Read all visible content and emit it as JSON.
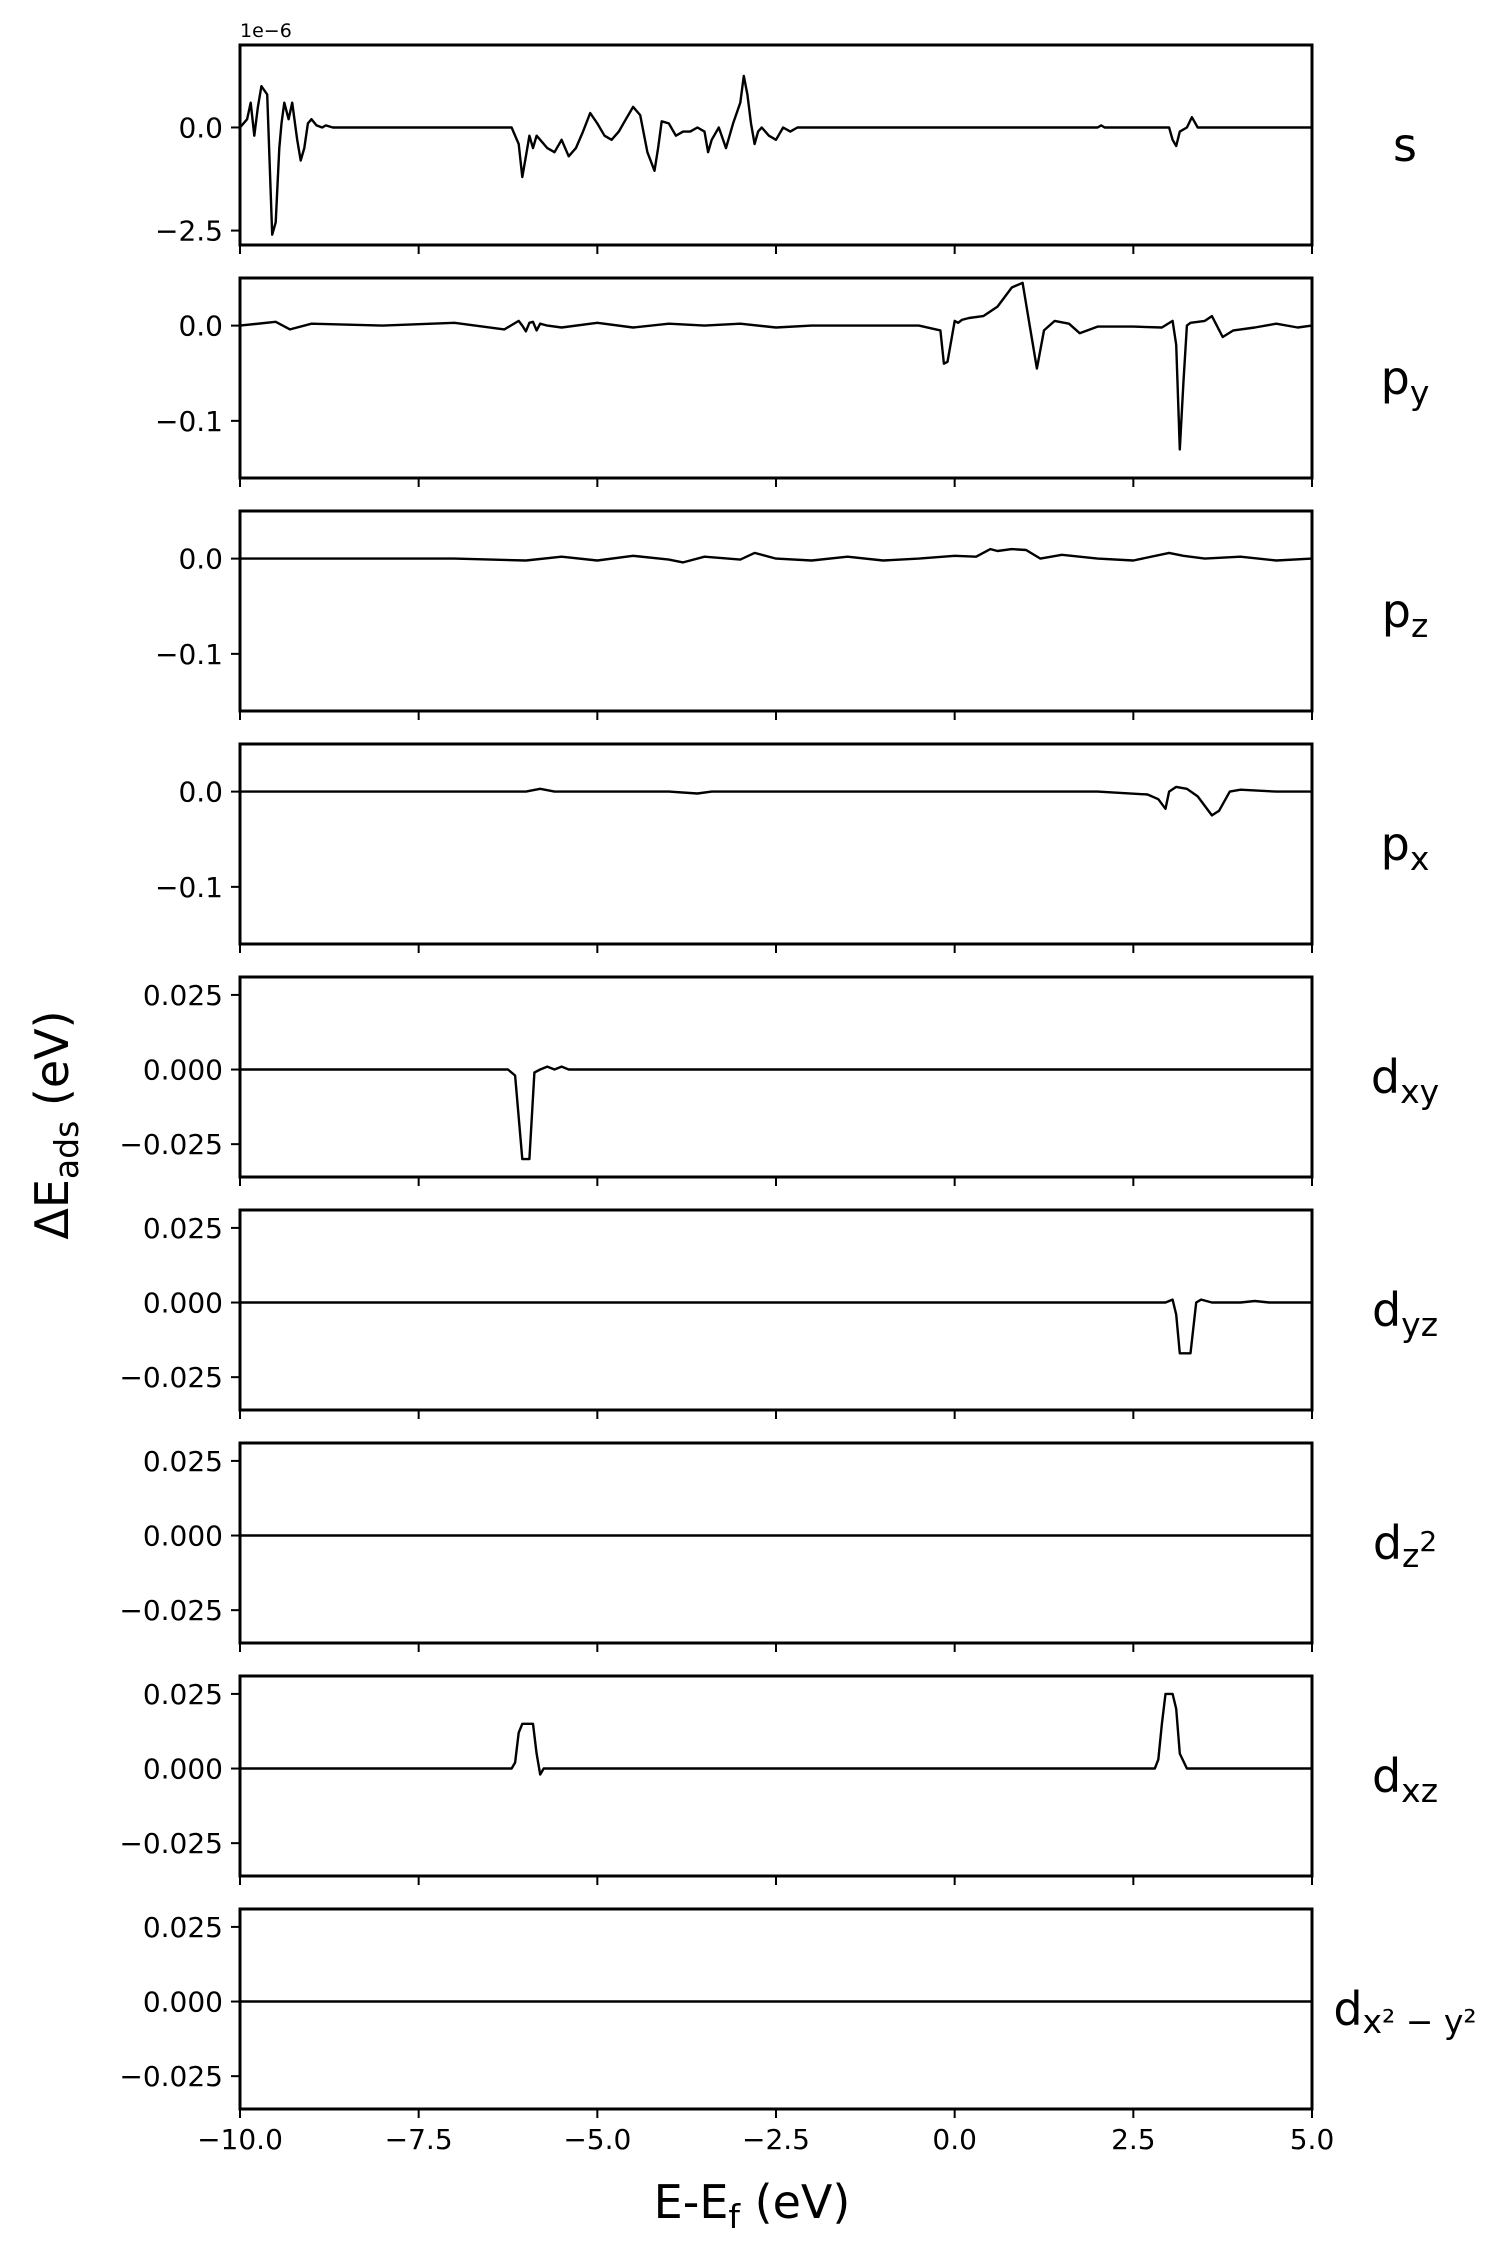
{
  "chart_data": {
    "type": "line",
    "layout": "9 vertically stacked panels sharing the x axis",
    "grid": false,
    "line_color": "#000000",
    "xlim": [
      -10.0,
      5.0
    ],
    "x_tick_values": [
      -10.0,
      -7.5,
      -5.0,
      -2.5,
      0.0,
      2.5,
      5.0
    ],
    "x_tick_labels": [
      "−10.0",
      "−7.5",
      "−5.0",
      "−2.5",
      "0.0",
      "2.5",
      "5.0"
    ],
    "xlabel": {
      "main": "E-E",
      "sub": "f",
      "unit": " (eV)"
    },
    "ylabel": {
      "main": "ΔE",
      "sub": "ads",
      "unit": " (eV)"
    },
    "panels": [
      {
        "orbital": "s",
        "orbital_sup_base": "",
        "orbital_sub": "",
        "offset_label": "1e−6",
        "ylim": [
          -2.85,
          2.0
        ],
        "y_ticks": [
          {
            "value": 0.0,
            "label": "0.0"
          },
          {
            "value": -2.5,
            "label": "−2.5"
          }
        ],
        "x": [
          -10.0,
          -9.9,
          -9.85,
          -9.8,
          -9.75,
          -9.7,
          -9.62,
          -9.55,
          -9.5,
          -9.45,
          -9.42,
          -9.38,
          -9.32,
          -9.27,
          -9.2,
          -9.15,
          -9.1,
          -9.05,
          -9.0,
          -8.93,
          -8.85,
          -8.8,
          -8.7,
          -6.2,
          -6.1,
          -6.05,
          -6.0,
          -5.95,
          -5.9,
          -5.85,
          -5.8,
          -5.7,
          -5.6,
          -5.5,
          -5.4,
          -5.3,
          -5.2,
          -5.1,
          -5.0,
          -4.9,
          -4.8,
          -4.7,
          -4.6,
          -4.5,
          -4.4,
          -4.3,
          -4.2,
          -4.15,
          -4.1,
          -4.0,
          -3.9,
          -3.8,
          -3.7,
          -3.6,
          -3.5,
          -3.45,
          -3.4,
          -3.3,
          -3.2,
          -3.1,
          -3.0,
          -2.95,
          -2.9,
          -2.85,
          -2.8,
          -2.75,
          -2.7,
          -2.6,
          -2.5,
          -2.4,
          -2.3,
          -2.2,
          -2.1,
          2.0,
          2.05,
          2.1,
          2.2,
          3.0,
          3.05,
          3.1,
          3.15,
          3.25,
          3.32,
          3.4,
          3.5,
          5.0
        ],
        "y": [
          0.0,
          0.2,
          0.6,
          -0.2,
          0.5,
          1.0,
          0.8,
          -2.6,
          -2.3,
          -0.5,
          0.1,
          0.6,
          0.2,
          0.6,
          -0.3,
          -0.8,
          -0.5,
          0.1,
          0.2,
          0.05,
          0.0,
          0.05,
          0.0,
          0.0,
          -0.4,
          -1.2,
          -0.7,
          -0.2,
          -0.5,
          -0.2,
          -0.3,
          -0.5,
          -0.6,
          -0.3,
          -0.7,
          -0.5,
          -0.1,
          0.35,
          0.1,
          -0.2,
          -0.3,
          -0.1,
          0.2,
          0.5,
          0.3,
          -0.6,
          -1.05,
          -0.5,
          0.15,
          0.1,
          -0.2,
          -0.1,
          -0.1,
          0.0,
          -0.1,
          -0.6,
          -0.3,
          0.0,
          -0.5,
          0.1,
          0.6,
          1.25,
          0.8,
          0.1,
          -0.4,
          -0.1,
          0.0,
          -0.2,
          -0.3,
          0.0,
          -0.1,
          0.0,
          0.0,
          0.0,
          0.05,
          0.0,
          0.0,
          0.0,
          -0.3,
          -0.45,
          -0.1,
          0.0,
          0.25,
          0.0,
          0.0,
          0.0
        ]
      },
      {
        "orbital": "p",
        "orbital_sup_base": "",
        "orbital_sub": "y",
        "offset_label": "",
        "ylim": [
          -0.16,
          0.05
        ],
        "y_ticks": [
          {
            "value": 0.0,
            "label": "0.0"
          },
          {
            "value": -0.1,
            "label": "−0.1"
          }
        ],
        "x": [
          -10.0,
          -9.5,
          -9.3,
          -9.0,
          -8.0,
          -7.0,
          -6.3,
          -6.1,
          -6.05,
          -6.0,
          -5.95,
          -5.9,
          -5.85,
          -5.8,
          -5.7,
          -5.5,
          -5.0,
          -4.5,
          -4.0,
          -3.5,
          -3.0,
          -2.5,
          -2.0,
          -1.5,
          -1.0,
          -0.5,
          -0.2,
          -0.15,
          -0.1,
          0.0,
          0.05,
          0.1,
          0.2,
          0.4,
          0.6,
          0.8,
          0.95,
          1.05,
          1.15,
          1.25,
          1.4,
          1.6,
          1.75,
          2.0,
          2.5,
          2.9,
          3.05,
          3.1,
          3.15,
          3.2,
          3.25,
          3.3,
          3.5,
          3.6,
          3.75,
          3.9,
          4.2,
          4.5,
          4.8,
          5.0
        ],
        "y": [
          0.0,
          0.004,
          -0.004,
          0.002,
          0.0,
          0.003,
          -0.004,
          0.005,
          0.0,
          -0.006,
          0.003,
          0.004,
          -0.005,
          0.002,
          0.0,
          -0.002,
          0.003,
          -0.002,
          0.002,
          0.0,
          0.002,
          -0.002,
          0.0,
          0.0,
          0.0,
          0.0,
          -0.005,
          -0.04,
          -0.038,
          0.005,
          0.003,
          0.006,
          0.008,
          0.01,
          0.02,
          0.04,
          0.045,
          0.0,
          -0.045,
          -0.005,
          0.005,
          0.002,
          -0.008,
          -0.001,
          -0.001,
          -0.002,
          0.005,
          -0.02,
          -0.13,
          -0.06,
          0.0,
          0.003,
          0.005,
          0.01,
          -0.012,
          -0.005,
          -0.002,
          0.002,
          -0.002,
          0.0
        ]
      },
      {
        "orbital": "p",
        "orbital_sup_base": "",
        "orbital_sub": "z",
        "offset_label": "",
        "ylim": [
          -0.16,
          0.05
        ],
        "y_ticks": [
          {
            "value": 0.0,
            "label": "0.0"
          },
          {
            "value": -0.1,
            "label": "−0.1"
          }
        ],
        "x": [
          -10.0,
          -8.0,
          -7.0,
          -6.0,
          -5.5,
          -5.0,
          -4.5,
          -4.0,
          -3.8,
          -3.5,
          -3.0,
          -2.8,
          -2.5,
          -2.0,
          -1.5,
          -1.0,
          -0.5,
          0.0,
          0.3,
          0.5,
          0.6,
          0.8,
          1.0,
          1.2,
          1.5,
          2.0,
          2.5,
          3.0,
          3.2,
          3.5,
          4.0,
          4.5,
          5.0
        ],
        "y": [
          0.0,
          0.0,
          0.0,
          -0.002,
          0.002,
          -0.002,
          0.003,
          -0.001,
          -0.004,
          0.002,
          -0.001,
          0.006,
          0.0,
          -0.002,
          0.002,
          -0.002,
          0.0,
          0.003,
          0.002,
          0.01,
          0.008,
          0.01,
          0.009,
          0.0,
          0.004,
          0.0,
          -0.002,
          0.006,
          0.003,
          0.0,
          0.002,
          -0.002,
          0.0
        ]
      },
      {
        "orbital": "p",
        "orbital_sup_base": "",
        "orbital_sub": "x",
        "offset_label": "",
        "ylim": [
          -0.16,
          0.05
        ],
        "y_ticks": [
          {
            "value": 0.0,
            "label": "0.0"
          },
          {
            "value": -0.1,
            "label": "−0.1"
          }
        ],
        "x": [
          -10.0,
          -6.0,
          -5.8,
          -5.6,
          -5.0,
          -4.0,
          -3.6,
          -3.4,
          -3.0,
          -2.0,
          0.0,
          2.0,
          2.7,
          2.85,
          2.95,
          3.0,
          3.1,
          3.25,
          3.4,
          3.5,
          3.6,
          3.7,
          3.85,
          4.0,
          4.5,
          5.0
        ],
        "y": [
          0.0,
          0.0,
          0.003,
          0.0,
          0.0,
          0.0,
          -0.002,
          0.0,
          0.0,
          0.0,
          0.0,
          0.0,
          -0.003,
          -0.008,
          -0.018,
          0.0,
          0.005,
          0.003,
          -0.005,
          -0.015,
          -0.025,
          -0.02,
          0.0,
          0.002,
          0.0,
          0.0
        ]
      },
      {
        "orbital": "d",
        "orbital_sup_base": "",
        "orbital_sub": "xy",
        "offset_label": "",
        "ylim": [
          -0.036,
          0.031
        ],
        "y_ticks": [
          {
            "value": 0.025,
            "label": "0.025"
          },
          {
            "value": 0.0,
            "label": "0.000"
          },
          {
            "value": -0.025,
            "label": "−0.025"
          }
        ],
        "x": [
          -10.0,
          -6.25,
          -6.15,
          -6.05,
          -5.95,
          -5.88,
          -5.8,
          -5.7,
          -5.6,
          -5.5,
          -5.4,
          -5.0,
          5.0
        ],
        "y": [
          0.0,
          0.0,
          -0.002,
          -0.03,
          -0.03,
          -0.001,
          0.0,
          0.001,
          0.0,
          0.001,
          0.0,
          0.0,
          0.0
        ]
      },
      {
        "orbital": "d",
        "orbital_sup_base": "",
        "orbital_sub": "yz",
        "offset_label": "",
        "ylim": [
          -0.036,
          0.031
        ],
        "y_ticks": [
          {
            "value": 0.025,
            "label": "0.025"
          },
          {
            "value": 0.0,
            "label": "0.000"
          },
          {
            "value": -0.025,
            "label": "−0.025"
          }
        ],
        "x": [
          -10.0,
          2.95,
          3.05,
          3.1,
          3.15,
          3.3,
          3.38,
          3.45,
          3.6,
          4.0,
          4.2,
          4.4,
          5.0
        ],
        "y": [
          0.0,
          0.0,
          0.001,
          -0.004,
          -0.017,
          -0.017,
          0.0,
          0.001,
          0.0,
          0.0,
          0.0005,
          0.0,
          0.0
        ]
      },
      {
        "orbital": "d",
        "orbital_sup_base": "z",
        "orbital_sub": "2",
        "offset_label": "",
        "ylim": [
          -0.036,
          0.031
        ],
        "y_ticks": [
          {
            "value": 0.025,
            "label": "0.025"
          },
          {
            "value": 0.0,
            "label": "0.000"
          },
          {
            "value": -0.025,
            "label": "−0.025"
          }
        ],
        "x": [
          -10.0,
          5.0
        ],
        "y": [
          0.0,
          0.0
        ]
      },
      {
        "orbital": "d",
        "orbital_sup_base": "",
        "orbital_sub": "xz",
        "offset_label": "",
        "ylim": [
          -0.036,
          0.031
        ],
        "y_ticks": [
          {
            "value": 0.025,
            "label": "0.025"
          },
          {
            "value": 0.0,
            "label": "0.000"
          },
          {
            "value": -0.025,
            "label": "−0.025"
          }
        ],
        "x": [
          -10.0,
          -6.2,
          -6.15,
          -6.1,
          -6.05,
          -5.9,
          -5.85,
          -5.8,
          -5.75,
          -5.7,
          2.8,
          2.85,
          2.9,
          2.95,
          3.05,
          3.1,
          3.15,
          3.25,
          5.0
        ],
        "y": [
          0.0,
          0.0,
          0.002,
          0.012,
          0.015,
          0.015,
          0.005,
          -0.002,
          0.0,
          0.0,
          0.0,
          0.003,
          0.015,
          0.025,
          0.025,
          0.02,
          0.005,
          0.0,
          0.0
        ]
      },
      {
        "orbital": "d",
        "orbital_sup_base": "x² − y²",
        "orbital_sub": "",
        "offset_label": "",
        "ylim": [
          -0.036,
          0.031
        ],
        "y_ticks": [
          {
            "value": 0.025,
            "label": "0.025"
          },
          {
            "value": 0.0,
            "label": "0.000"
          },
          {
            "value": -0.025,
            "label": "−0.025"
          }
        ],
        "x": [
          -10.0,
          5.0
        ],
        "y": [
          0.0,
          0.0
        ]
      }
    ]
  }
}
